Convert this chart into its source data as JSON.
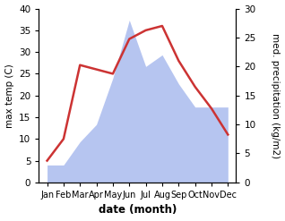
{
  "months": [
    "Jan",
    "Feb",
    "Mar",
    "Apr",
    "May",
    "Jun",
    "Jul",
    "Aug",
    "Sep",
    "Oct",
    "Nov",
    "Dec"
  ],
  "temperature": [
    5,
    10,
    27,
    26,
    25,
    33,
    35,
    36,
    28,
    22,
    17,
    11
  ],
  "precipitation": [
    3,
    3,
    7,
    10,
    18,
    28,
    20,
    22,
    17,
    13,
    13,
    13
  ],
  "temp_color": "#cc3333",
  "precip_color": "#aabbee",
  "ylim_temp": [
    0,
    40
  ],
  "ylim_precip": [
    0,
    30
  ],
  "xlabel": "date (month)",
  "ylabel_left": "max temp (C)",
  "ylabel_right": "med. precipitation (kg/m2)",
  "bg_color": "#ffffff"
}
